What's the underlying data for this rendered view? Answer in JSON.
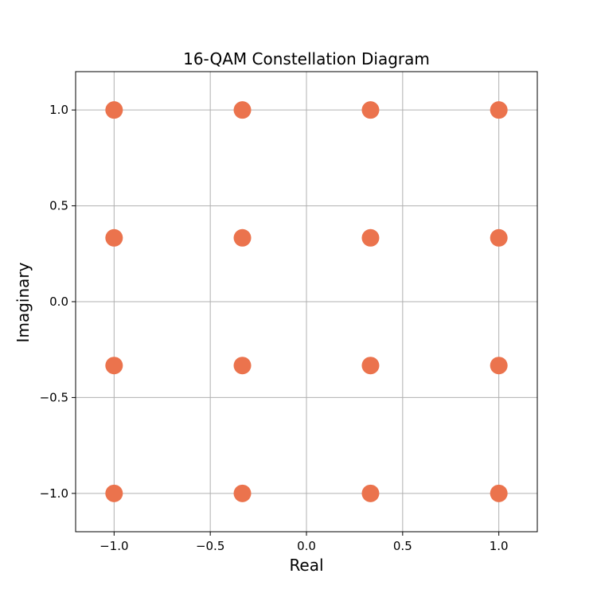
{
  "chart_data": {
    "type": "scatter",
    "title": "16-QAM Constellation Diagram",
    "xlabel": "Real",
    "ylabel": "Imaginary",
    "xlim": [
      -1.2,
      1.2
    ],
    "ylim": [
      -1.2,
      1.2
    ],
    "x_ticks": [
      -1.0,
      -0.5,
      0.0,
      0.5,
      1.0
    ],
    "y_ticks": [
      -1.0,
      -0.5,
      0.0,
      0.5,
      1.0
    ],
    "x_tick_labels": [
      "−1.0",
      "−0.5",
      "0.0",
      "0.5",
      "1.0"
    ],
    "y_tick_labels": [
      "−1.0",
      "−0.5",
      "0.0",
      "0.5",
      "1.0"
    ],
    "grid": true,
    "marker_color": "#eb734d",
    "grid_color": "#b0b0b0",
    "points": [
      {
        "x": -1.0,
        "y": -1.0
      },
      {
        "x": -1.0,
        "y": -0.333
      },
      {
        "x": -1.0,
        "y": 0.333
      },
      {
        "x": -1.0,
        "y": 1.0
      },
      {
        "x": -0.333,
        "y": -1.0
      },
      {
        "x": -0.333,
        "y": -0.333
      },
      {
        "x": -0.333,
        "y": 0.333
      },
      {
        "x": -0.333,
        "y": 1.0
      },
      {
        "x": 0.333,
        "y": -1.0
      },
      {
        "x": 0.333,
        "y": -0.333
      },
      {
        "x": 0.333,
        "y": 0.333
      },
      {
        "x": 0.333,
        "y": 1.0
      },
      {
        "x": 1.0,
        "y": -1.0
      },
      {
        "x": 1.0,
        "y": -0.333
      },
      {
        "x": 1.0,
        "y": 0.333
      },
      {
        "x": 1.0,
        "y": 1.0
      }
    ]
  }
}
